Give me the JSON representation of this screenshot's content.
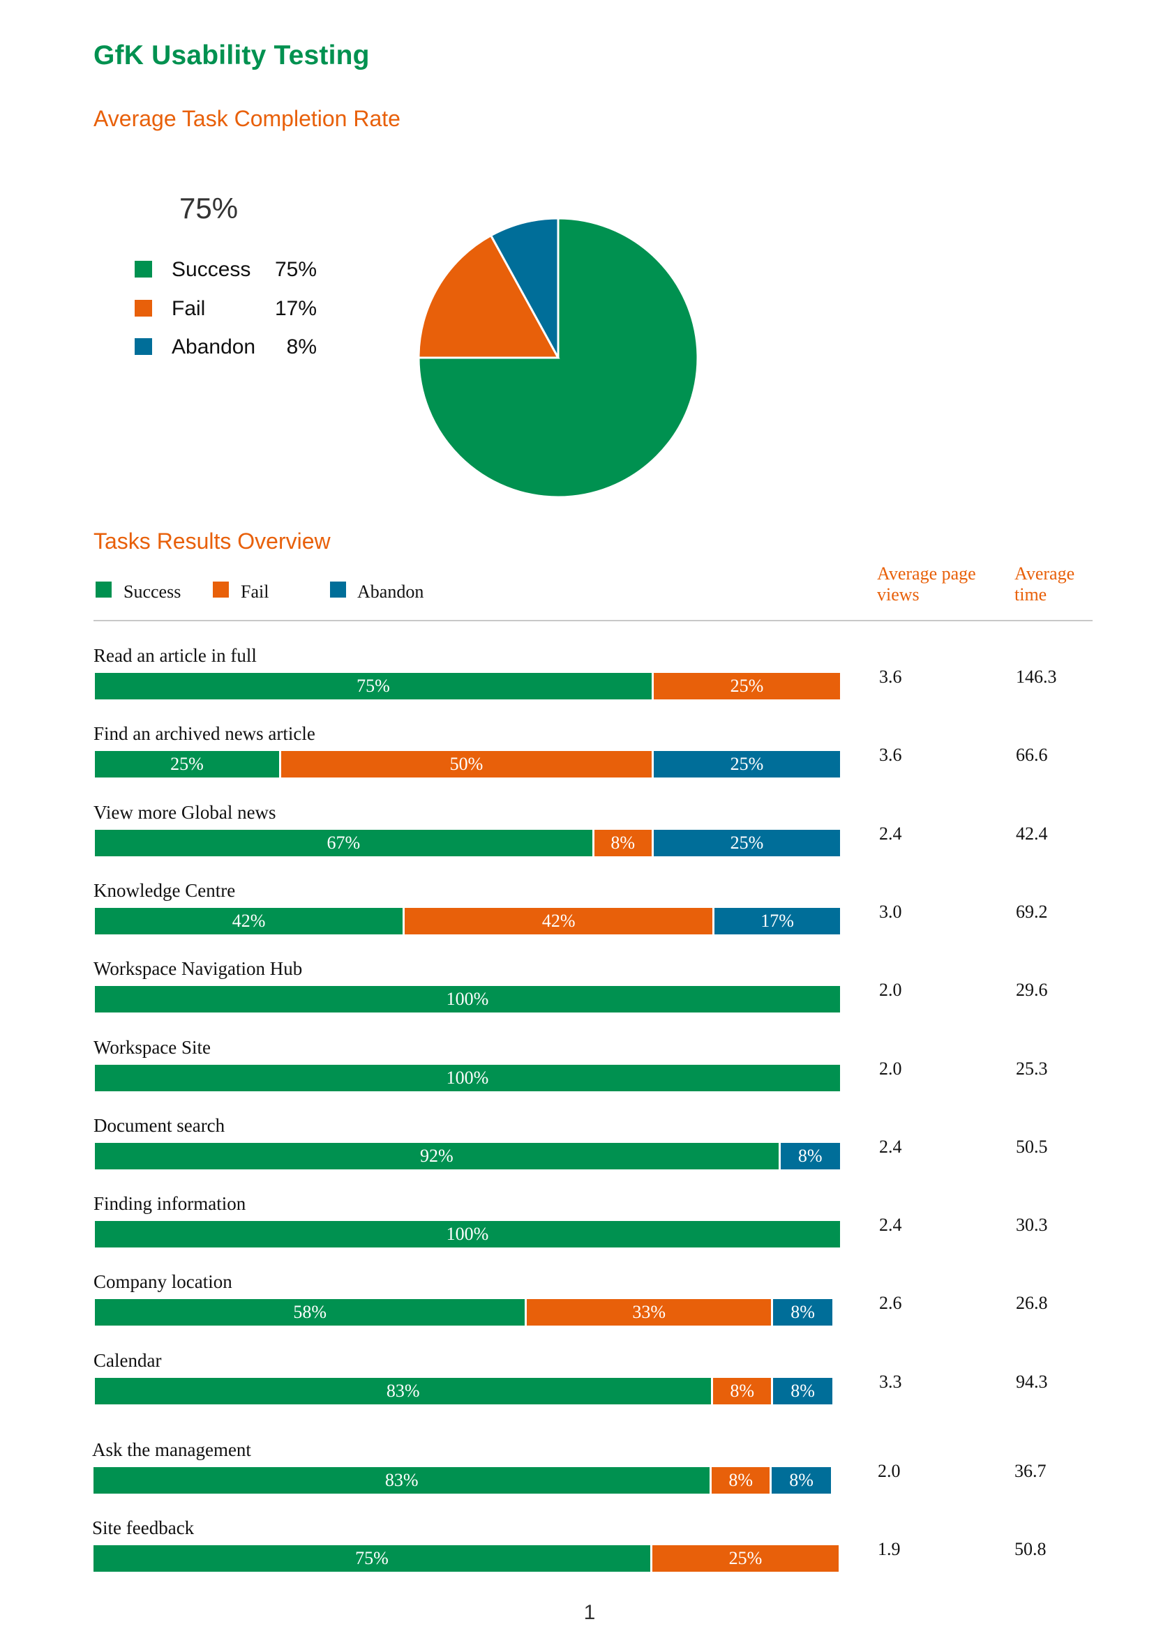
{
  "title": "GfK Usability Testing",
  "completion_heading": "Average Task Completion Rate",
  "completion_big": "75%",
  "colors": {
    "success": "#009150",
    "fail": "#E8600A",
    "abandon": "#006E99"
  },
  "completion_legend": [
    {
      "label": "Success",
      "value": "75%"
    },
    {
      "label": "Fail",
      "value": "17%"
    },
    {
      "label": "Abandon",
      "value": "8%"
    }
  ],
  "tasks_heading": "Tasks Results Overview",
  "tasks_legend": [
    "Success",
    "Fail",
    "Abandon"
  ],
  "col_headers": {
    "page_views": "Average page views",
    "time": "Average time"
  },
  "page_number": "1",
  "chart_data": [
    {
      "type": "pie",
      "title": "Average Task Completion Rate",
      "labels": [
        "Success",
        "Fail",
        "Abandon"
      ],
      "values": [
        75,
        17,
        8
      ],
      "unit": "%",
      "legend": "left"
    },
    {
      "type": "bar",
      "orientation": "horizontal",
      "stacked": true,
      "title": "Tasks Results Overview",
      "series_names": [
        "Success",
        "Fail",
        "Abandon"
      ],
      "legend": "top-left",
      "rows": [
        {
          "task": "Read an article in full",
          "values": [
            75,
            25,
            0
          ],
          "labels": [
            "75%",
            "25%",
            ""
          ],
          "page_views": "3.6",
          "time": "146.3"
        },
        {
          "task": "Find an archived news article",
          "values": [
            25,
            50,
            25
          ],
          "labels": [
            "25%",
            "50%",
            "25%"
          ],
          "page_views": "3.6",
          "time": "66.6"
        },
        {
          "task": "View more Global news",
          "values": [
            67,
            8,
            25
          ],
          "labels": [
            "67%",
            "8%",
            "25%"
          ],
          "page_views": "2.4",
          "time": "42.4"
        },
        {
          "task": "Knowledge Centre",
          "values": [
            42,
            42,
            17
          ],
          "labels": [
            "42%",
            "42%",
            "17%"
          ],
          "page_views": "3.0",
          "time": "69.2"
        },
        {
          "task": "Workspace Navigation Hub",
          "values": [
            100,
            0,
            0
          ],
          "labels": [
            "100%",
            "",
            ""
          ],
          "page_views": "2.0",
          "time": "29.6"
        },
        {
          "task": "Workspace Site",
          "values": [
            100,
            0,
            0
          ],
          "labels": [
            "100%",
            "",
            ""
          ],
          "page_views": "2.0",
          "time": "25.3"
        },
        {
          "task": "Document search",
          "values": [
            92,
            0,
            8
          ],
          "labels": [
            "92%",
            "",
            "8%"
          ],
          "page_views": "2.4",
          "time": "50.5"
        },
        {
          "task": "Finding information",
          "values": [
            100,
            0,
            0
          ],
          "labels": [
            "100%",
            "",
            ""
          ],
          "page_views": "2.4",
          "time": "30.3"
        },
        {
          "task": "Company location",
          "values": [
            58,
            33,
            8
          ],
          "labels": [
            "58%",
            "33%",
            "8%"
          ],
          "page_views": "2.6",
          "time": "26.8"
        },
        {
          "task": "Calendar",
          "values": [
            83,
            8,
            8
          ],
          "labels": [
            "83%",
            "8%",
            "8%"
          ],
          "page_views": "3.3",
          "time": "94.3"
        },
        {
          "task": "Ask the management",
          "values": [
            83,
            8,
            8
          ],
          "labels": [
            "83%",
            "8%",
            "8%"
          ],
          "page_views": "2.0",
          "time": "36.7"
        },
        {
          "task": "Site feedback",
          "values": [
            75,
            25,
            0
          ],
          "labels": [
            "75%",
            "25%",
            ""
          ],
          "page_views": "1.9",
          "time": "50.8"
        }
      ]
    }
  ]
}
